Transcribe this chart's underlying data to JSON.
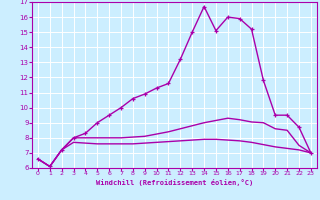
{
  "xlabel": "Windchill (Refroidissement éolien,°C)",
  "background_color": "#cceeff",
  "line_color": "#aa00aa",
  "grid_color": "#ffffff",
  "xlim": [
    -0.5,
    23.5
  ],
  "ylim": [
    6,
    17
  ],
  "yticks": [
    6,
    7,
    8,
    9,
    10,
    11,
    12,
    13,
    14,
    15,
    16,
    17
  ],
  "xticks": [
    0,
    1,
    2,
    3,
    4,
    5,
    6,
    7,
    8,
    9,
    10,
    11,
    12,
    13,
    14,
    15,
    16,
    17,
    18,
    19,
    20,
    21,
    22,
    23
  ],
  "series": [
    {
      "x": [
        0,
        1,
        2,
        3,
        4,
        5,
        6,
        7,
        8,
        9,
        10,
        11,
        12,
        13,
        14,
        15,
        16,
        17,
        18,
        19,
        20,
        21,
        22,
        23
      ],
      "y": [
        6.6,
        6.1,
        7.2,
        7.7,
        7.65,
        7.6,
        7.6,
        7.6,
        7.6,
        7.65,
        7.7,
        7.75,
        7.8,
        7.85,
        7.9,
        7.9,
        7.85,
        7.8,
        7.7,
        7.55,
        7.4,
        7.3,
        7.2,
        7.0
      ],
      "marker": false,
      "linewidth": 1.0
    },
    {
      "x": [
        0,
        1,
        2,
        3,
        4,
        5,
        6,
        7,
        8,
        9,
        10,
        11,
        12,
        13,
        14,
        15,
        16,
        17,
        18,
        19,
        20,
        21,
        22,
        23
      ],
      "y": [
        6.6,
        6.1,
        7.2,
        8.0,
        8.0,
        8.0,
        8.0,
        8.0,
        8.05,
        8.1,
        8.25,
        8.4,
        8.6,
        8.8,
        9.0,
        9.15,
        9.3,
        9.2,
        9.05,
        9.0,
        8.6,
        8.5,
        7.5,
        7.0
      ],
      "marker": false,
      "linewidth": 1.0
    },
    {
      "x": [
        0,
        1,
        2,
        3,
        4,
        5,
        6,
        7,
        8,
        9,
        10,
        11,
        12,
        13,
        14,
        15,
        16,
        17,
        18,
        19,
        20,
        21,
        22,
        23
      ],
      "y": [
        6.6,
        6.1,
        7.2,
        8.0,
        8.3,
        9.0,
        9.5,
        10.0,
        10.6,
        10.9,
        11.3,
        11.6,
        13.2,
        15.0,
        16.7,
        15.1,
        16.0,
        15.9,
        15.2,
        11.8,
        9.5,
        9.5,
        8.7,
        7.0
      ],
      "marker": true,
      "linewidth": 1.0
    }
  ]
}
